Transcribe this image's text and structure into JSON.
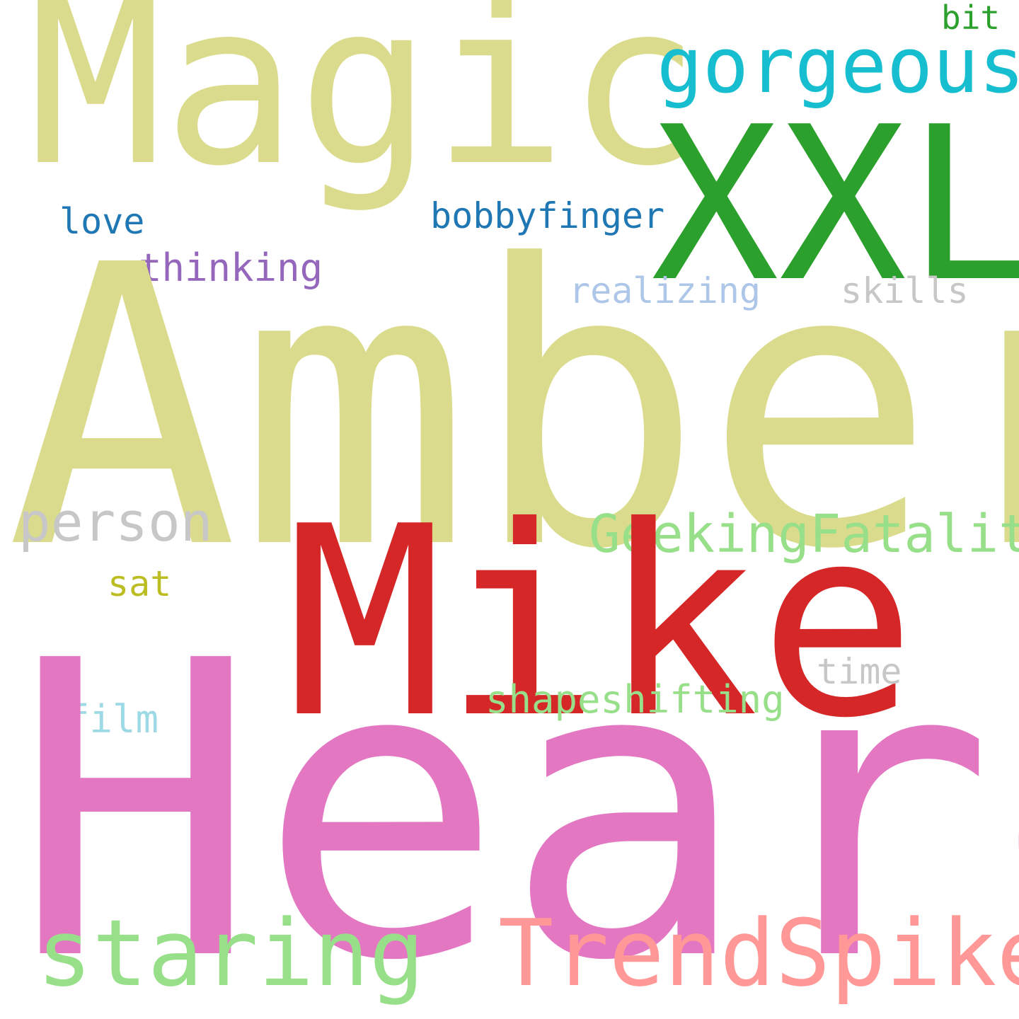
{
  "words": [
    {
      "key": "magic",
      "text": "Magic",
      "color": "#dbdb8d"
    },
    {
      "key": "xxl",
      "text": "XXL",
      "color": "#2ca02c"
    },
    {
      "key": "gorgeous",
      "text": "gorgeous",
      "color": "#17becf"
    },
    {
      "key": "bit",
      "text": "bit",
      "color": "#2ca02c"
    },
    {
      "key": "love",
      "text": "love",
      "color": "#1f77b4"
    },
    {
      "key": "bobbyfinger",
      "text": "bobbyfinger",
      "color": "#1f77b4"
    },
    {
      "key": "thinking",
      "text": "thinking",
      "color": "#9467bd"
    },
    {
      "key": "realizing",
      "text": "realizing",
      "color": "#aec7e8"
    },
    {
      "key": "skills",
      "text": "skills",
      "color": "#c7c7c7"
    },
    {
      "key": "amber",
      "text": "Amber",
      "color": "#dbdb8d"
    },
    {
      "key": "person",
      "text": "person",
      "color": "#c7c7c7"
    },
    {
      "key": "geekingfatality",
      "text": "GeekingFatality",
      "color": "#98df8a"
    },
    {
      "key": "mike",
      "text": "Mike",
      "color": "#d62728"
    },
    {
      "key": "sat",
      "text": "sat",
      "color": "#bcbd22"
    },
    {
      "key": "time",
      "text": "time",
      "color": "#c7c7c7"
    },
    {
      "key": "shapeshifting",
      "text": "shapeshifting",
      "color": "#98df8a"
    },
    {
      "key": "film",
      "text": "film",
      "color": "#9edae5"
    },
    {
      "key": "heard",
      "text": "Heard",
      "color": "#e377c2"
    },
    {
      "key": "staring",
      "text": "staring",
      "color": "#98df8a"
    },
    {
      "key": "trendspike",
      "text": "TrendSpike",
      "color": "#ff9896"
    }
  ]
}
